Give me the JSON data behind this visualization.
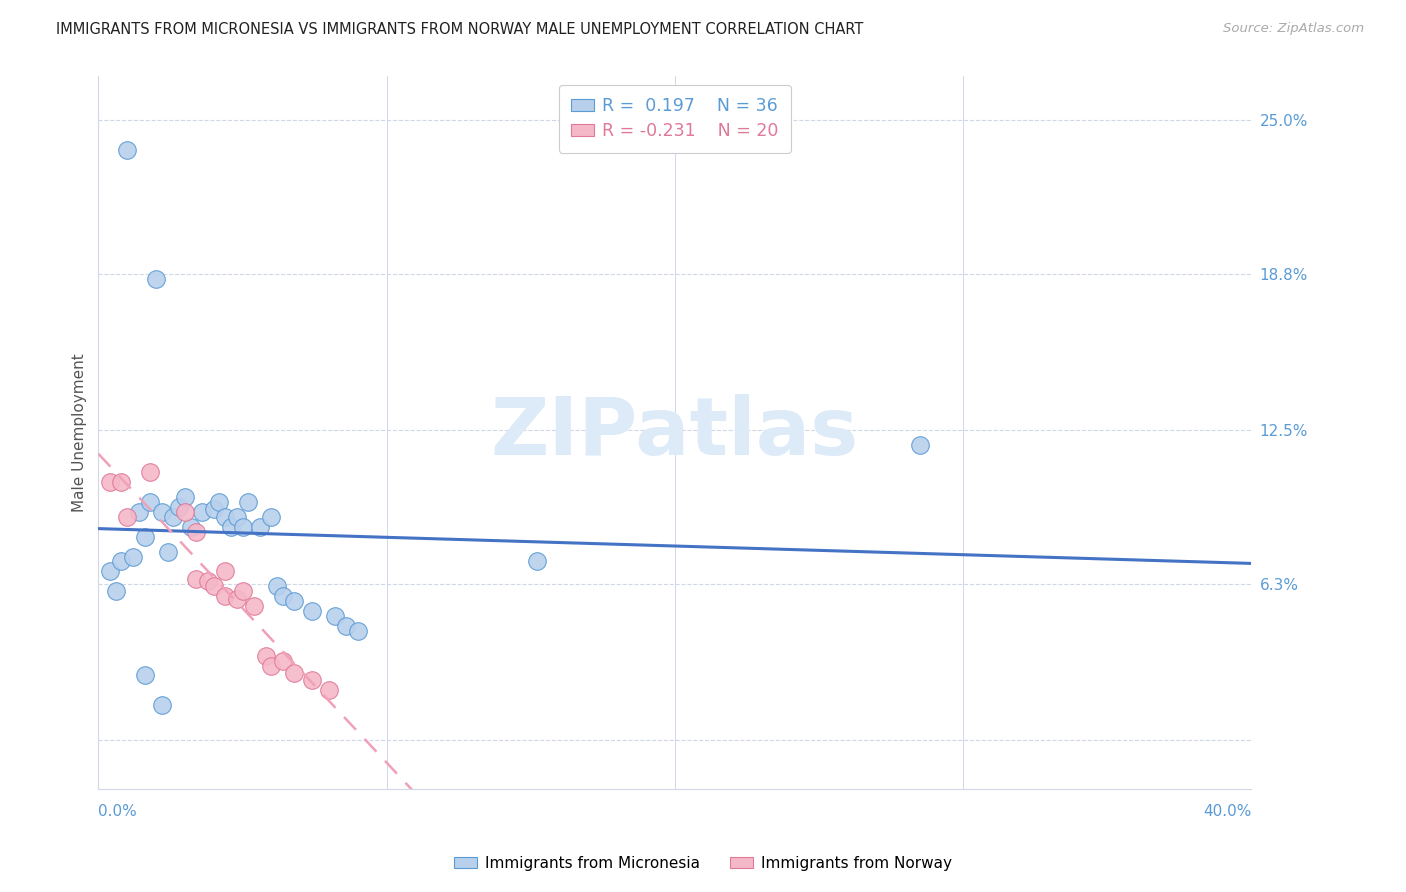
{
  "title": "IMMIGRANTS FROM MICRONESIA VS IMMIGRANTS FROM NORWAY MALE UNEMPLOYMENT CORRELATION CHART",
  "source": "Source: ZipAtlas.com",
  "ylabel": "Male Unemployment",
  "xlim": [
    0.0,
    0.4
  ],
  "ylim": [
    -0.02,
    0.268
  ],
  "yticks": [
    0.0,
    0.063,
    0.125,
    0.188,
    0.25
  ],
  "yticklabels": [
    "",
    "6.3%",
    "12.5%",
    "18.8%",
    "25.0%"
  ],
  "xticks": [
    0.0,
    0.1,
    0.2,
    0.3,
    0.4
  ],
  "blue_face": "#b8d0ec",
  "blue_edge": "#5b9bd5",
  "pink_face": "#f5b8c8",
  "pink_edge": "#e07898",
  "blue_line": "#4472c4",
  "pink_line": "#f0a0b8",
  "axis_label_color": "#5b9bd5",
  "title_color": "#222222",
  "source_color": "#aaaaaa",
  "watermark_color": "#ddeaf8",
  "grid_color": "#d0d8e8",
  "legend_r1_color": "#5b9bd5",
  "legend_n1_color": "#5b9bd5",
  "legend_r2_color": "#e07898",
  "legend_n2_color": "#e07898",
  "micronesia_x": [
    0.01,
    0.02,
    0.004,
    0.006,
    0.008,
    0.012,
    0.014,
    0.016,
    0.018,
    0.022,
    0.024,
    0.026,
    0.028,
    0.03,
    0.032,
    0.036,
    0.04,
    0.042,
    0.044,
    0.046,
    0.048,
    0.05,
    0.052,
    0.056,
    0.06,
    0.062,
    0.064,
    0.068,
    0.074,
    0.082,
    0.086,
    0.09,
    0.152,
    0.285,
    0.016,
    0.022
  ],
  "micronesia_y": [
    0.238,
    0.186,
    0.068,
    0.06,
    0.072,
    0.074,
    0.092,
    0.082,
    0.096,
    0.092,
    0.076,
    0.09,
    0.094,
    0.098,
    0.086,
    0.092,
    0.093,
    0.096,
    0.09,
    0.086,
    0.09,
    0.086,
    0.096,
    0.086,
    0.09,
    0.062,
    0.058,
    0.056,
    0.052,
    0.05,
    0.046,
    0.044,
    0.072,
    0.119,
    0.026,
    0.014
  ],
  "norway_x": [
    0.004,
    0.008,
    0.01,
    0.018,
    0.03,
    0.034,
    0.034,
    0.038,
    0.04,
    0.044,
    0.044,
    0.048,
    0.05,
    0.054,
    0.058,
    0.06,
    0.064,
    0.068,
    0.074,
    0.08
  ],
  "norway_y": [
    0.104,
    0.104,
    0.09,
    0.108,
    0.092,
    0.084,
    0.065,
    0.064,
    0.062,
    0.068,
    0.058,
    0.057,
    0.06,
    0.054,
    0.034,
    0.03,
    0.032,
    0.027,
    0.024,
    0.02
  ]
}
